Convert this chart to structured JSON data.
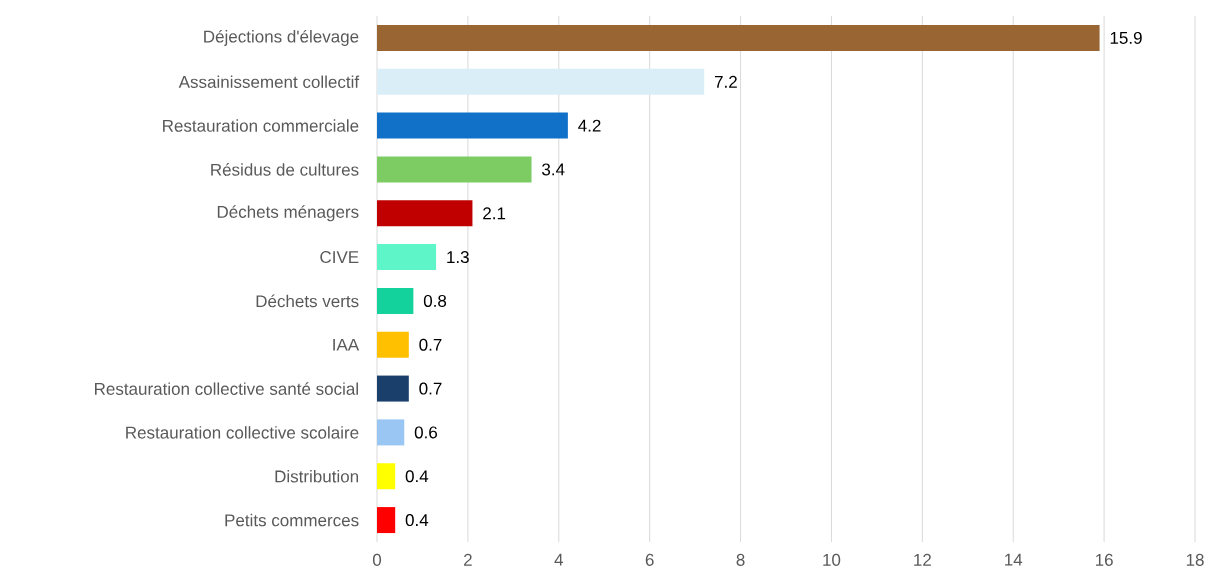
{
  "chart_data": {
    "type": "bar",
    "orientation": "horizontal",
    "categories": [
      "Déjections d'élevage",
      "Assainissement collectif",
      "Restauration commerciale",
      "Résidus de cultures",
      "Déchets ménagers",
      "CIVE",
      "Déchets verts",
      "IAA",
      "Restauration collective santé social",
      "Restauration collective scolaire",
      "Distribution",
      "Petits commerces"
    ],
    "values": [
      15.9,
      7.2,
      4.2,
      3.4,
      2.1,
      1.3,
      0.8,
      0.7,
      0.7,
      0.6,
      0.4,
      0.4
    ],
    "colors": [
      "#996633",
      "#daeef8",
      "#1170c8",
      "#7dcc63",
      "#c00000",
      "#5ef5c8",
      "#14d29c",
      "#ffc000",
      "#1a3f6a",
      "#99c6f2",
      "#ffff00",
      "#ff0000"
    ],
    "xlim": [
      0,
      18
    ],
    "xticks": [
      0,
      2,
      4,
      6,
      8,
      10,
      12,
      14,
      16,
      18
    ],
    "grid": "x",
    "data_labels": true
  }
}
